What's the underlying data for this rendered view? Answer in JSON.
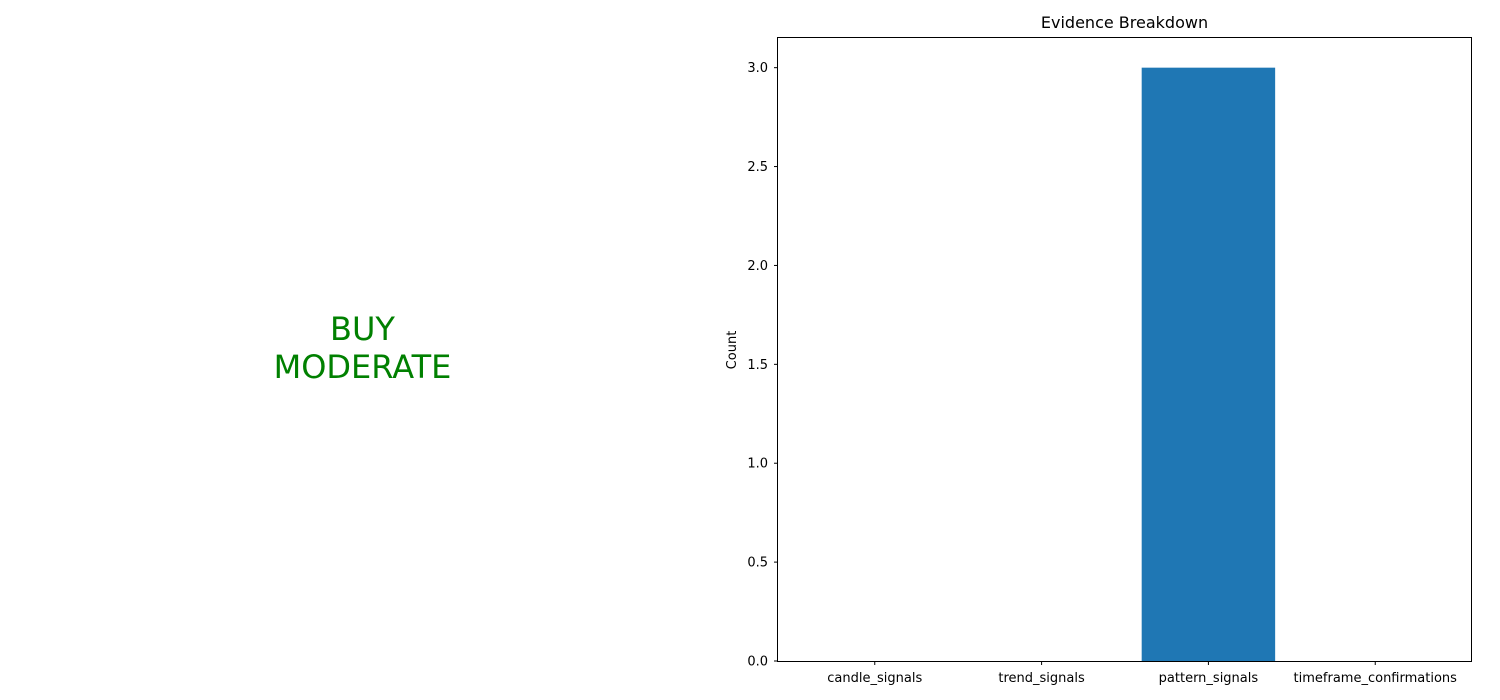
{
  "signal": {
    "action": "BUY",
    "strength": "MODERATE",
    "color": "#008000"
  },
  "chart_data": {
    "type": "bar",
    "title": "Evidence Breakdown",
    "xlabel": "",
    "ylabel": "Count",
    "categories": [
      "candle_signals",
      "trend_signals",
      "pattern_signals",
      "timeframe_confirmations"
    ],
    "values": [
      0,
      0,
      3,
      0
    ],
    "ylim": [
      0,
      3.15
    ],
    "yticks": [
      0.0,
      0.5,
      1.0,
      1.5,
      2.0,
      2.5,
      3.0
    ],
    "ytick_labels": [
      "0.0",
      "0.5",
      "1.0",
      "1.5",
      "2.0",
      "2.5",
      "3.0"
    ],
    "bar_color": "#1f77b4",
    "grid": false,
    "legend": "none"
  }
}
